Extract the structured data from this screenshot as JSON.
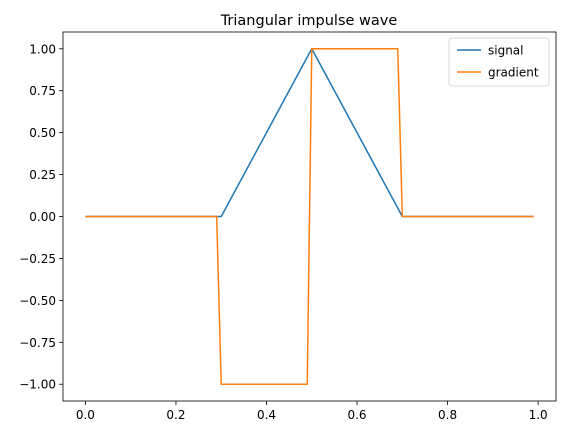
{
  "chart_data": {
    "type": "line",
    "title": "Triangular impulse wave",
    "xlabel": "",
    "ylabel": "",
    "xlim": [
      -0.0495,
      1.0395
    ],
    "ylim": [
      -1.1,
      1.1
    ],
    "xticks": [
      0.0,
      0.2,
      0.4,
      0.6,
      0.8,
      1.0
    ],
    "xtick_labels": [
      "0.0",
      "0.2",
      "0.4",
      "0.6",
      "0.8",
      "1.0"
    ],
    "yticks": [
      1.0,
      0.75,
      0.5,
      0.25,
      0.0,
      -0.25,
      -0.5,
      -0.75,
      -1.0
    ],
    "ytick_labels": [
      "1.00",
      "0.75",
      "0.50",
      "0.25",
      "0.00",
      "−0.25",
      "−0.50",
      "−0.75",
      "−1.00"
    ],
    "grid": false,
    "legend": "top-right",
    "series": [
      {
        "name": "signal",
        "color": "#1f77b4",
        "x": [
          0.0,
          0.3,
          0.5,
          0.7,
          0.99
        ],
        "y": [
          0.0,
          0.0,
          1.0,
          0.0,
          0.0
        ]
      },
      {
        "name": "gradient",
        "color": "#ff7f0e",
        "x": [
          0.0,
          0.29,
          0.3,
          0.49,
          0.5,
          0.69,
          0.7,
          0.99
        ],
        "y": [
          0.0,
          0.0,
          -1.0,
          -1.0,
          1.0,
          1.0,
          0.0,
          0.0
        ]
      }
    ]
  }
}
